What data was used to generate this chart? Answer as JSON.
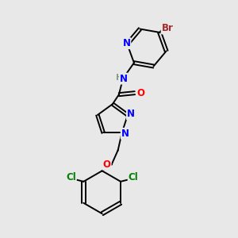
{
  "background_color": "#e8e8e8",
  "bond_color": "#000000",
  "atom_colors": {
    "N": "#0000ff",
    "O": "#ff0000",
    "Br": "#a52a2a",
    "Cl": "#008000",
    "H": "#7f9f7f",
    "C": "#000000"
  },
  "figsize": [
    3.0,
    3.0
  ],
  "dpi": 100
}
